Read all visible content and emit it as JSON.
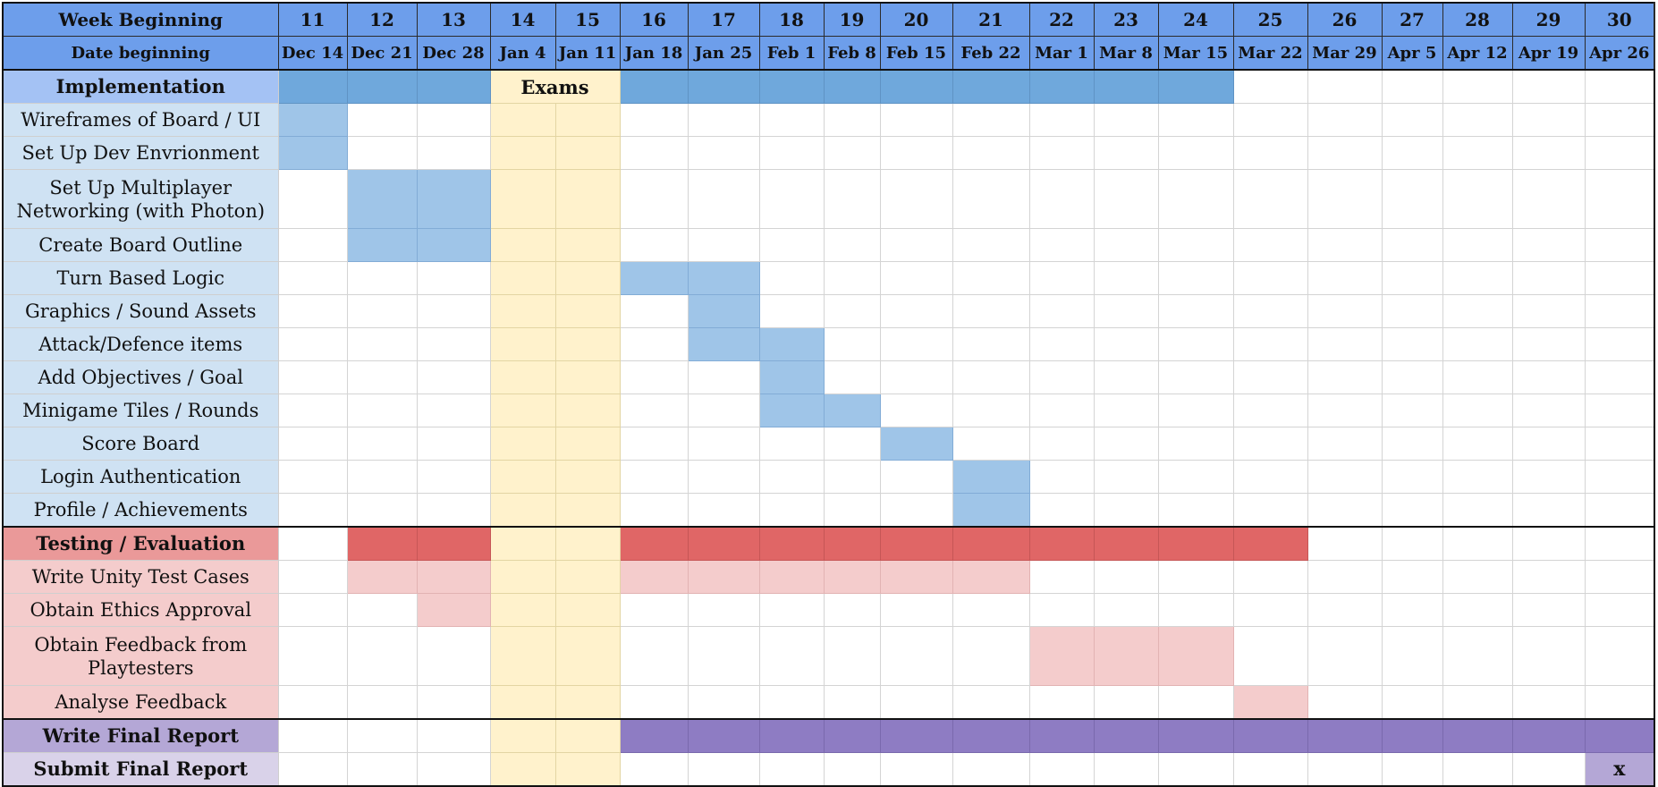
{
  "header": {
    "week_label": "Week Beginning",
    "date_label": "Date beginning",
    "weeks": [
      "11",
      "12",
      "13",
      "14",
      "15",
      "16",
      "17",
      "18",
      "19",
      "20",
      "21",
      "22",
      "23",
      "24",
      "25",
      "26",
      "27",
      "28",
      "29",
      "30"
    ],
    "dates": [
      "Dec 14",
      "Dec 21",
      "Dec 28",
      "Jan 4",
      "Jan 11",
      "Jan 18",
      "Jan 25",
      "Feb 1",
      "Feb 8",
      "Feb 15",
      "Feb 22",
      "Mar 1",
      "Mar 8",
      "Mar 15",
      "Mar 22",
      "Mar 29",
      "Apr 5",
      "Apr 12",
      "Apr 19",
      "Apr 26"
    ]
  },
  "exams": {
    "label": "Exams",
    "start_week": 14,
    "end_week": 15,
    "color": "#fff2cc"
  },
  "colors": {
    "header": "#6d9eeb",
    "implementation_bar": "#6fa8dc",
    "implementation_task": "#9fc5e8",
    "testing_bar": "#e06666",
    "testing_task": "#f4cccc",
    "report_bar": "#8e7cc3",
    "submit_bar": "#b4a7d6"
  },
  "rows": [
    {
      "label": "Implementation",
      "kind": "impl-head",
      "bar": "b-impl",
      "weeks": [
        11,
        12,
        13,
        16,
        17,
        18,
        19,
        20,
        21,
        22,
        23,
        24
      ]
    },
    {
      "label": "Wireframes of Board / UI",
      "kind": "impl-label",
      "bar": "b-light",
      "weeks": [
        11
      ]
    },
    {
      "label": "Set Up Dev Envrionment",
      "kind": "impl-label",
      "bar": "b-light",
      "weeks": [
        11
      ]
    },
    {
      "label": "Set Up Multiplayer Networking (with Photon)",
      "kind": "impl-label",
      "bar": "b-light",
      "weeks": [
        12,
        13
      ],
      "tall": true
    },
    {
      "label": "Create Board Outline",
      "kind": "impl-label",
      "bar": "b-light",
      "weeks": [
        12,
        13
      ]
    },
    {
      "label": "Turn Based Logic",
      "kind": "impl-label",
      "bar": "b-light",
      "weeks": [
        16,
        17
      ]
    },
    {
      "label": "Graphics / Sound Assets",
      "kind": "impl-label",
      "bar": "b-light",
      "weeks": [
        17
      ]
    },
    {
      "label": "Attack/Defence items",
      "kind": "impl-label",
      "bar": "b-light",
      "weeks": [
        17,
        18
      ]
    },
    {
      "label": "Add Objectives / Goal",
      "kind": "impl-label",
      "bar": "b-light",
      "weeks": [
        18
      ]
    },
    {
      "label": "Minigame Tiles / Rounds",
      "kind": "impl-label",
      "bar": "b-light",
      "weeks": [
        18,
        19
      ]
    },
    {
      "label": "Score Board",
      "kind": "impl-label",
      "bar": "b-light",
      "weeks": [
        20
      ]
    },
    {
      "label": "Login Authentication",
      "kind": "impl-label",
      "bar": "b-light",
      "weeks": [
        21
      ]
    },
    {
      "label": "Profile / Achievements",
      "kind": "impl-label",
      "bar": "b-light",
      "weeks": [
        21
      ]
    },
    {
      "label": "Testing / Evaluation",
      "kind": "test-head",
      "bar": "b-test",
      "weeks": [
        12,
        13,
        16,
        17,
        18,
        19,
        20,
        21,
        22,
        23,
        24,
        25
      ],
      "sectionTop": true
    },
    {
      "label": "Write Unity Test Cases",
      "kind": "test-label",
      "bar": "b-pink",
      "weeks": [
        12,
        13,
        16,
        17,
        18,
        19,
        20,
        21
      ]
    },
    {
      "label": "Obtain Ethics Approval",
      "kind": "test-label",
      "bar": "b-pink",
      "weeks": [
        13
      ]
    },
    {
      "label": "Obtain Feedback from Playtesters",
      "kind": "test-label",
      "bar": "b-pink",
      "weeks": [
        22,
        23,
        24
      ],
      "tall": true
    },
    {
      "label": "Analyse Feedback",
      "kind": "test-label",
      "bar": "b-pink",
      "weeks": [
        25
      ]
    },
    {
      "label": "Write Final Report",
      "kind": "report-head",
      "bar": "b-report",
      "weeks": [
        16,
        17,
        18,
        19,
        20,
        21,
        22,
        23,
        24,
        25,
        26,
        27,
        28,
        29,
        30
      ],
      "sectionTop": true
    },
    {
      "label": "Submit Final Report",
      "kind": "submit-head",
      "bar": "b-submit",
      "weeks": [
        30
      ],
      "mark": "x"
    }
  ]
}
